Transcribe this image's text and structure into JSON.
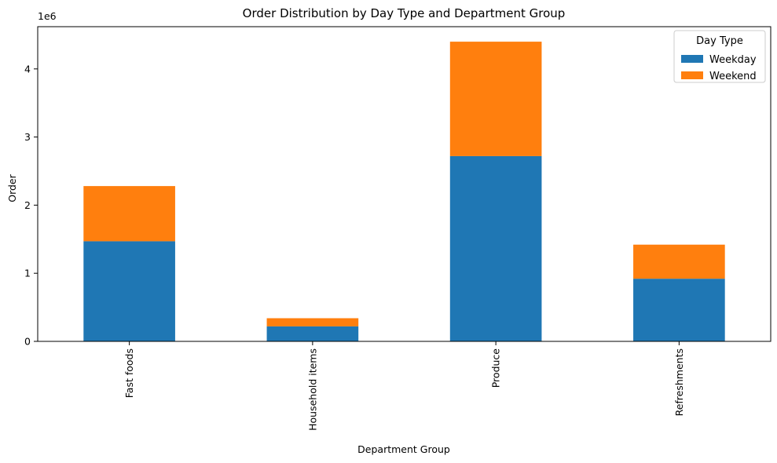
{
  "chart_data": {
    "type": "bar",
    "stacked": true,
    "title": "Order Distribution by Day Type and Department Group",
    "xlabel": "Department Group",
    "ylabel": "Order",
    "y_offset_label": "1e6",
    "y_scale": 1000000,
    "categories": [
      "Fast foods",
      "Household items",
      "Produce",
      "Refreshments"
    ],
    "series": [
      {
        "name": "Weekday",
        "color": "#1f77b4",
        "values": [
          1470000,
          220000,
          2720000,
          920000
        ]
      },
      {
        "name": "Weekend",
        "color": "#ff7f0e",
        "values": [
          810000,
          120000,
          1680000,
          500000
        ]
      }
    ],
    "ylim": [
      0,
      4620000
    ],
    "yticks": [
      0,
      1000000,
      2000000,
      3000000,
      4000000
    ],
    "ytick_labels": [
      "0",
      "1",
      "2",
      "3",
      "4"
    ],
    "legend": {
      "title": "Day Type",
      "placement": "top-right"
    },
    "grid": false
  }
}
